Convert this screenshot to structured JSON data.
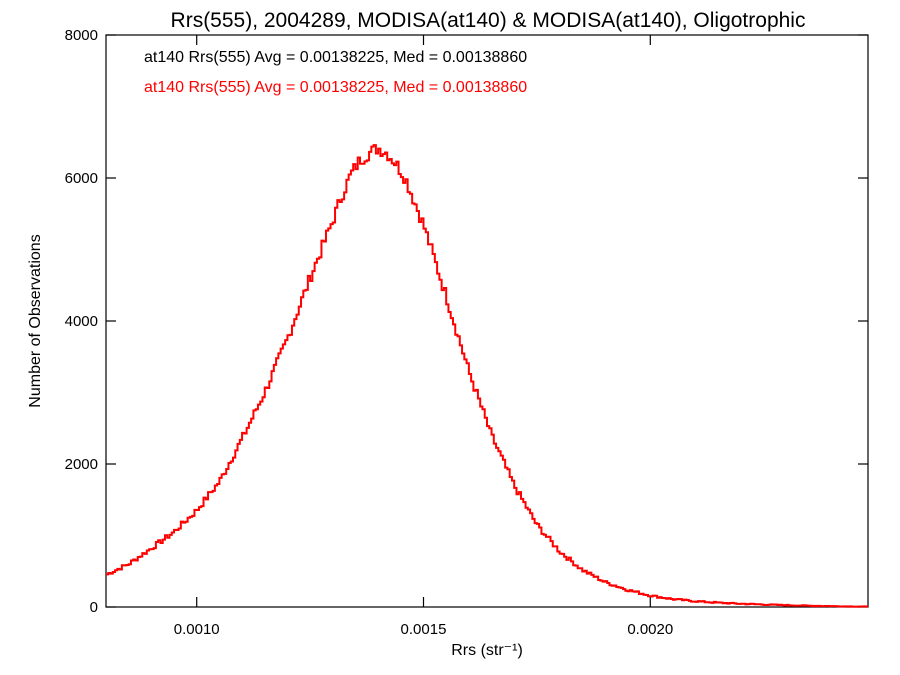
{
  "chart_data": {
    "type": "line",
    "style": "step histogram",
    "title": "Rrs(555), 2004289, MODISA(at140) & MODISA(at140), Oligotrophic",
    "xlabel": "Rrs (str⁻¹)",
    "ylabel": "Number of Observations",
    "xlim": [
      0.0008,
      0.00248
    ],
    "ylim": [
      0,
      8000
    ],
    "x_ticks": [
      0.001,
      0.0015,
      0.002
    ],
    "x_tick_labels": [
      "0.0010",
      "0.0015",
      "0.0020"
    ],
    "y_ticks": [
      0,
      2000,
      4000,
      6000,
      8000
    ],
    "y_tick_labels": [
      "0",
      "2000",
      "4000",
      "6000",
      "8000"
    ],
    "legend": [
      {
        "text": "at140 Rrs(555) Avg = 0.00138225, Med = 0.00138860",
        "color": "#000000"
      },
      {
        "text": "at140 Rrs(555) Avg = 0.00138225, Med = 0.00138860",
        "color": "#ff0000"
      }
    ],
    "legend_position": "top-left",
    "grid": false,
    "series": [
      {
        "color": "#ff0000",
        "x": [
          0.0008,
          0.00085,
          0.0009,
          0.00095,
          0.001,
          0.00105,
          0.0011,
          0.00115,
          0.0012,
          0.00125,
          0.0013,
          0.00132,
          0.00134,
          0.00136,
          0.00138,
          0.0014,
          0.00142,
          0.00144,
          0.00146,
          0.0015,
          0.00155,
          0.0016,
          0.00165,
          0.0017,
          0.00175,
          0.0018,
          0.00185,
          0.0019,
          0.00195,
          0.002,
          0.00205,
          0.0021,
          0.00215,
          0.0022,
          0.00225,
          0.0023,
          0.00235,
          0.0024,
          0.00248
        ],
        "y": [
          450,
          600,
          820,
          1050,
          1350,
          1750,
          2350,
          3000,
          3750,
          4600,
          5400,
          5750,
          6050,
          6250,
          6350,
          6420,
          6350,
          6200,
          6000,
          5350,
          4350,
          3300,
          2400,
          1700,
          1150,
          780,
          520,
          350,
          240,
          160,
          110,
          80,
          60,
          45,
          35,
          25,
          18,
          12,
          5
        ]
      }
    ]
  }
}
